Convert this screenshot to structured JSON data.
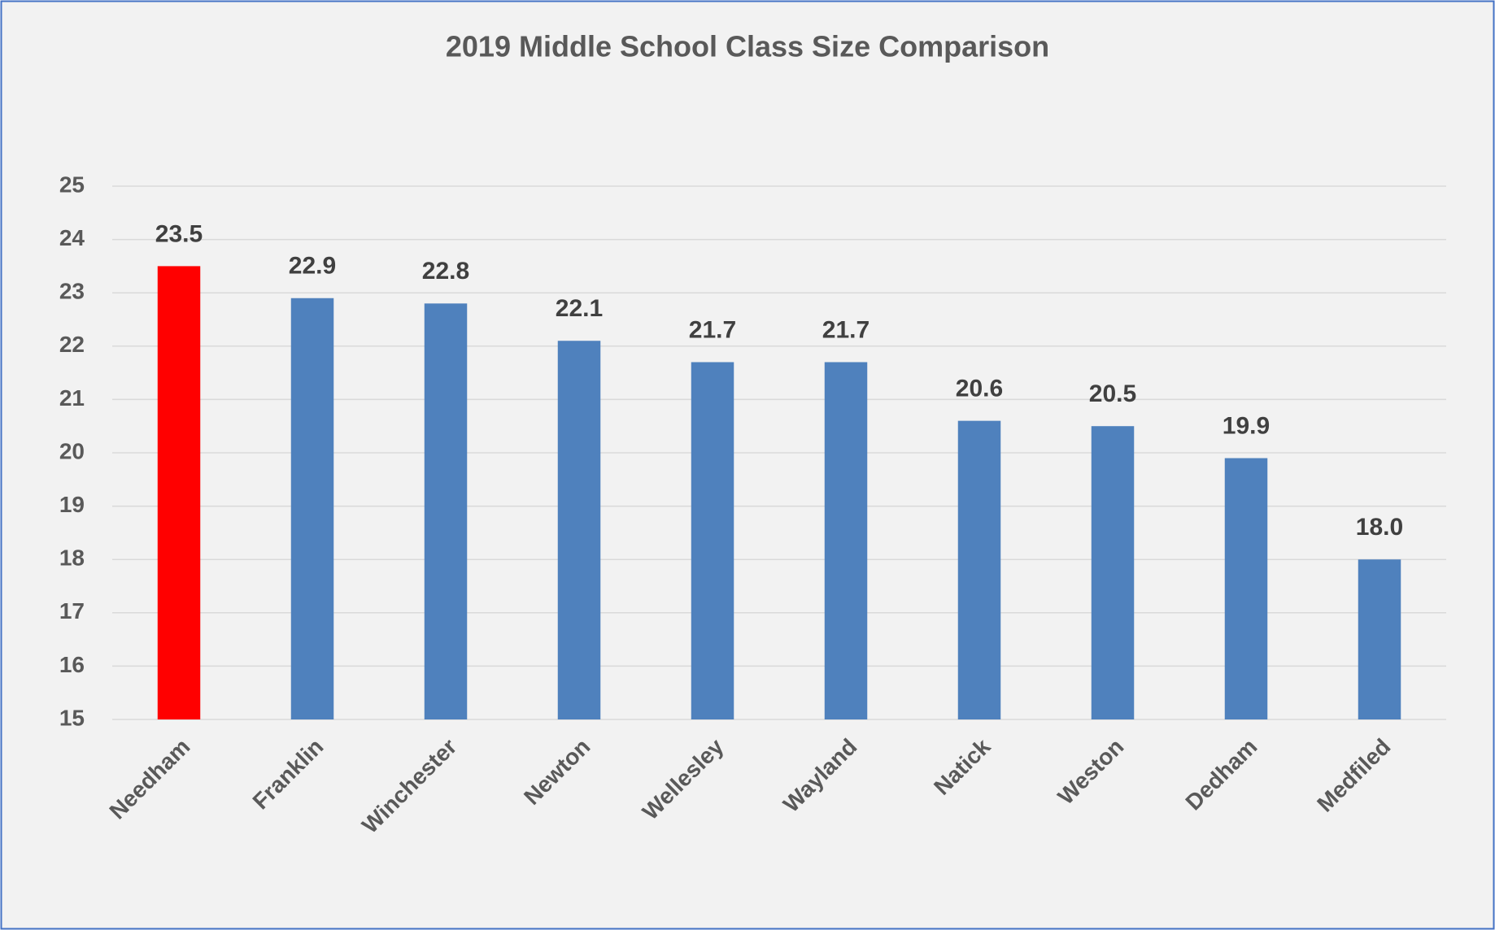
{
  "chart_data": {
    "type": "bar",
    "title": "2019 Middle School Class Size Comparison",
    "categories": [
      "Needham",
      "Franklin",
      "Winchester",
      "Newton",
      "Wellesley",
      "Wayland",
      "Natick",
      "Weston",
      "Dedham",
      "Medfiled"
    ],
    "values": [
      23.5,
      22.9,
      22.8,
      22.1,
      21.7,
      21.7,
      20.6,
      20.5,
      19.9,
      18.0
    ],
    "value_labels": [
      "23.5",
      "22.9",
      "22.8",
      "22.1",
      "21.7",
      "21.7",
      "20.6",
      "20.5",
      "19.9",
      "18.0"
    ],
    "colors": [
      "#ff0000",
      "#4f81bd",
      "#4f81bd",
      "#4f81bd",
      "#4f81bd",
      "#4f81bd",
      "#4f81bd",
      "#4f81bd",
      "#4f81bd",
      "#4f81bd"
    ],
    "ylim": [
      15,
      25
    ],
    "yticks": [
      15,
      16,
      17,
      18,
      19,
      20,
      21,
      22,
      23,
      24,
      25
    ],
    "grid": true
  }
}
